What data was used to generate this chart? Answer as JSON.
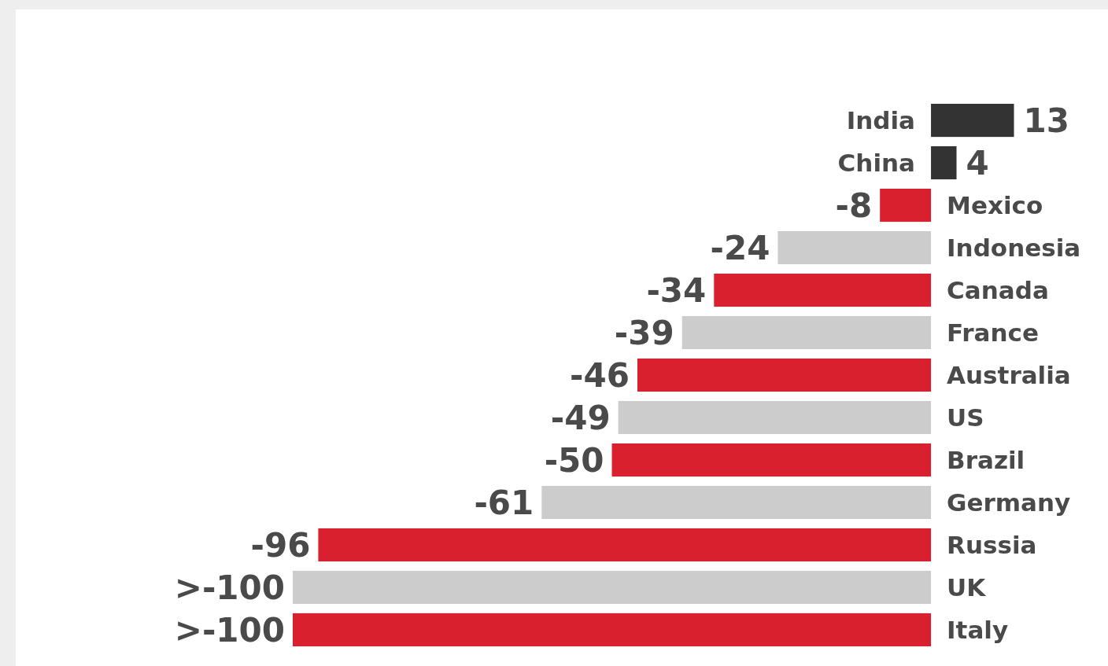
{
  "chart_data": {
    "type": "bar",
    "orientation": "horizontal",
    "categories": [
      "India",
      "China",
      "Mexico",
      "Indonesia",
      "Canada",
      "France",
      "Australia",
      "US",
      "Brazil",
      "Germany",
      "Russia",
      "UK",
      "Italy"
    ],
    "values": [
      13,
      4,
      -8,
      -24,
      -34,
      -39,
      -46,
      -49,
      -50,
      -61,
      -96,
      -100,
      -100
    ],
    "value_labels": [
      "13",
      "4",
      "-8",
      "-24",
      "-34",
      "-39",
      "-46",
      "-49",
      "-50",
      "-61",
      "-96",
      ">-100",
      ">-100"
    ],
    "colors": [
      "#333333",
      "#333333",
      "#d8202e",
      "#cccccc",
      "#d8202e",
      "#cccccc",
      "#d8202e",
      "#cccccc",
      "#d8202e",
      "#cccccc",
      "#d8202e",
      "#cccccc",
      "#d8202e"
    ],
    "data_labels": false
  }
}
